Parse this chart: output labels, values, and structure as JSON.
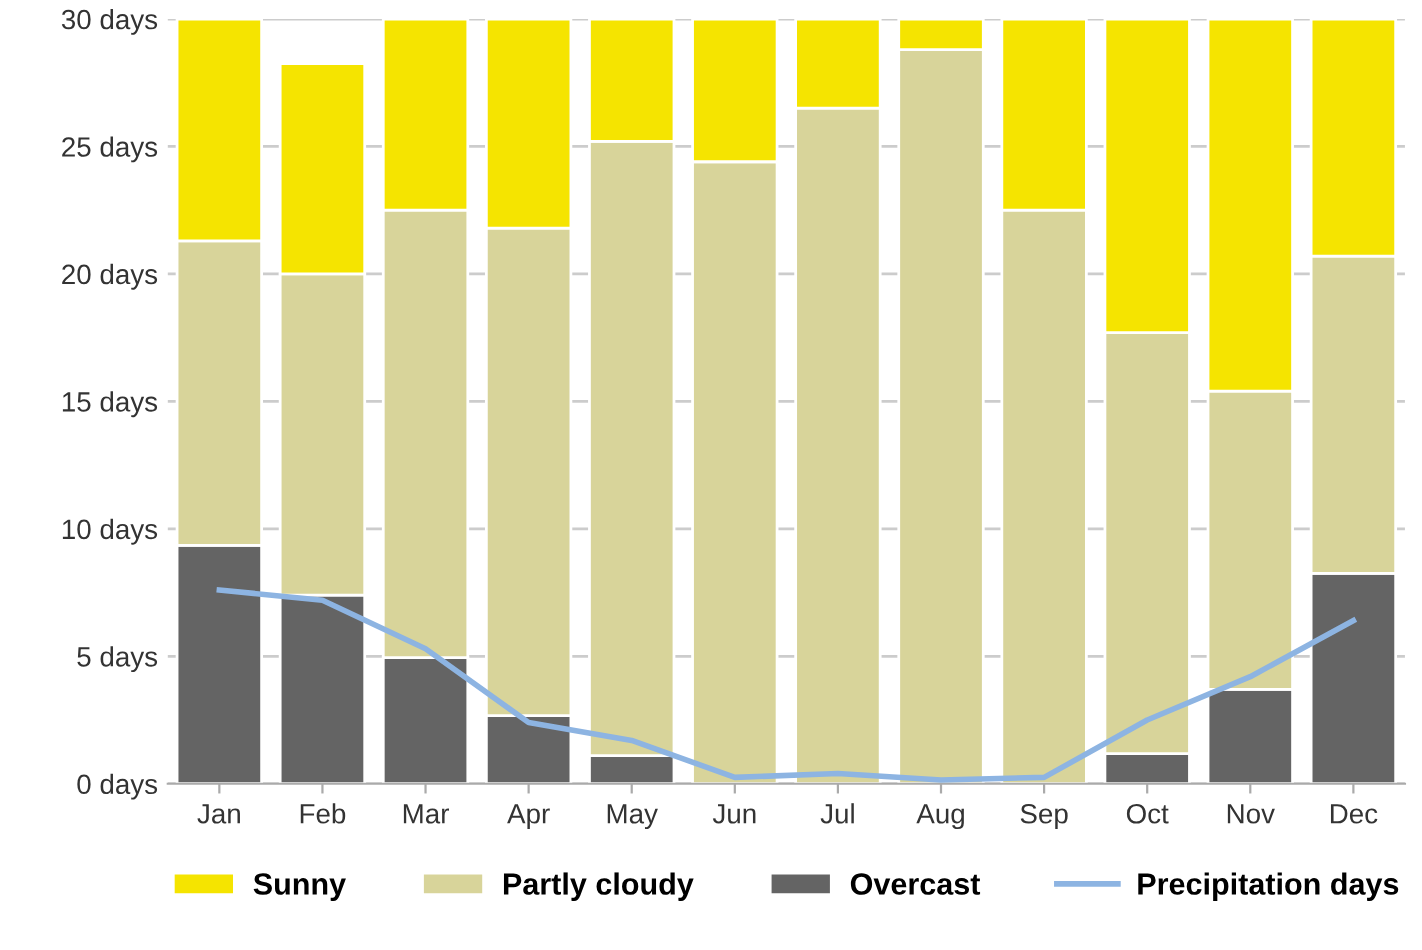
{
  "chart_data": {
    "type": "bar",
    "stacked": true,
    "categories": [
      "Jan",
      "Feb",
      "Mar",
      "Apr",
      "May",
      "Jun",
      "Jul",
      "Aug",
      "Sep",
      "Oct",
      "Nov",
      "Dec"
    ],
    "series": [
      {
        "name": "Overcast",
        "color": "#646464",
        "values": [
          9.35,
          7.4,
          4.95,
          2.67,
          1.1,
          0,
          0,
          0,
          0,
          1.18,
          3.7,
          8.25
        ]
      },
      {
        "name": "Partly cloudy",
        "color": "#d8d49a",
        "values": [
          11.95,
          12.6,
          17.55,
          19.13,
          24.1,
          24.4,
          26.5,
          28.8,
          22.5,
          16.52,
          11.7,
          12.45
        ]
      },
      {
        "name": "Sunny",
        "color": "#f5e400",
        "values": [
          8.7,
          8.25,
          7.5,
          8.2,
          4.8,
          5.6,
          3.5,
          1.2,
          7.5,
          12.3,
          14.6,
          9.3
        ]
      },
      {
        "name": "Precipitation days",
        "type": "line",
        "color": "#8db4e2",
        "values": [
          7.6,
          7.2,
          5.3,
          2.4,
          1.7,
          0.25,
          0.4,
          0.15,
          0.25,
          2.5,
          4.2,
          6.4
        ]
      }
    ],
    "ylim": [
      0,
      30
    ],
    "yticks": [
      {
        "value": 0,
        "label": "0 days"
      },
      {
        "value": 5,
        "label": "5 days"
      },
      {
        "value": 10,
        "label": "10 days"
      },
      {
        "value": 15,
        "label": "15 days"
      },
      {
        "value": 20,
        "label": "20 days"
      },
      {
        "value": 25,
        "label": "25 days"
      },
      {
        "value": 30,
        "label": "30 days"
      }
    ],
    "grid": "y",
    "legend": "bottom",
    "marker": "none"
  }
}
